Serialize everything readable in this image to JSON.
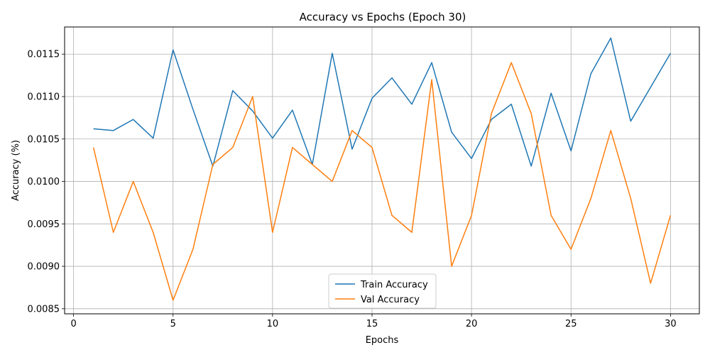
{
  "chart_data": {
    "type": "line",
    "title": "Accuracy vs Epochs (Epoch 30)",
    "xlabel": "Epochs",
    "ylabel": "Accuracy (%)",
    "xlim": [
      -0.45,
      31.45
    ],
    "ylim": [
      0.00844,
      0.01182
    ],
    "xticks": [
      0,
      5,
      10,
      15,
      20,
      25,
      30
    ],
    "xtick_labels": [
      "0",
      "5",
      "10",
      "15",
      "20",
      "25",
      "30"
    ],
    "yticks": [
      0.0085,
      0.009,
      0.0095,
      0.01,
      0.0105,
      0.011,
      0.0115
    ],
    "ytick_labels": [
      "0.0085",
      "0.0090",
      "0.0095",
      "0.0100",
      "0.0105",
      "0.0110",
      "0.0115"
    ],
    "grid": true,
    "legend_position": "bottom-center",
    "x": [
      1,
      2,
      3,
      4,
      5,
      6,
      7,
      8,
      9,
      10,
      11,
      12,
      13,
      14,
      15,
      16,
      17,
      18,
      19,
      20,
      21,
      22,
      23,
      24,
      25,
      26,
      27,
      28,
      29,
      30
    ],
    "series": [
      {
        "name": "Train Accuracy",
        "color": "#1f77b4",
        "values": [
          0.01062,
          0.0106,
          0.01073,
          0.01051,
          0.01155,
          0.01085,
          0.01018,
          0.01107,
          0.01083,
          0.01051,
          0.01084,
          0.0102,
          0.01151,
          0.01038,
          0.01098,
          0.01122,
          0.01091,
          0.0114,
          0.01058,
          0.01027,
          0.01073,
          0.01091,
          0.01018,
          0.01104,
          0.01036,
          0.01127,
          0.01169,
          0.01071,
          0.01111,
          0.01151
        ]
      },
      {
        "name": "Val Accuracy",
        "color": "#ff7f0e",
        "values": [
          0.0104,
          0.0094,
          0.01,
          0.0094,
          0.0086,
          0.0092,
          0.0102,
          0.0104,
          0.011,
          0.0094,
          0.0104,
          0.0102,
          0.01,
          0.0106,
          0.0104,
          0.0096,
          0.0094,
          0.0112,
          0.009,
          0.0096,
          0.0108,
          0.0114,
          0.0108,
          0.0096,
          0.0092,
          0.0098,
          0.0106,
          0.0098,
          0.0088,
          0.0096
        ]
      }
    ]
  }
}
